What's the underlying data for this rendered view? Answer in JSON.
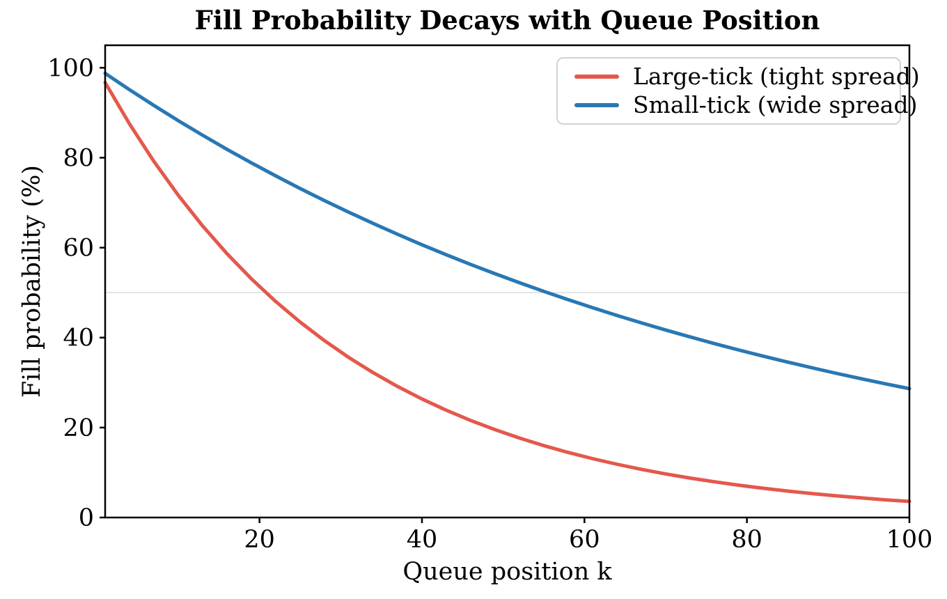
{
  "title": "Fill Probability Decays with Queue Position",
  "x_axis": {
    "label": "Queue position k"
  },
  "y_axis": {
    "label": "Fill probability (%)"
  },
  "legend": {
    "items": [
      {
        "label": "Large-tick (tight spread)"
      },
      {
        "label": "Small-tick (wide spread)"
      }
    ]
  },
  "chart_data": {
    "type": "line",
    "title": "Fill Probability Decays with Queue Position",
    "xlabel": "Queue position k",
    "ylabel": "Fill probability (%)",
    "xlim": [
      1,
      100
    ],
    "ylim": [
      0,
      105
    ],
    "xticks": [
      20,
      40,
      60,
      80,
      100
    ],
    "yticks": [
      0,
      20,
      40,
      60,
      80,
      100
    ],
    "grid": false,
    "reference_line": {
      "y": 50,
      "color": "#dcdcdc"
    },
    "legend_position": "upper right",
    "x": [
      1,
      4,
      7,
      10,
      13,
      16,
      19,
      22,
      25,
      28,
      31,
      34,
      37,
      40,
      43,
      46,
      49,
      52,
      55,
      58,
      61,
      64,
      67,
      70,
      73,
      76,
      79,
      82,
      85,
      88,
      91,
      94,
      97,
      100
    ],
    "series": [
      {
        "name": "Large-tick (tight spread)",
        "color": "#e4584c",
        "values": [
          96.72,
          87.52,
          79.19,
          71.65,
          64.83,
          58.66,
          53.08,
          48.03,
          43.46,
          39.32,
          35.58,
          32.2,
          29.13,
          26.36,
          23.85,
          21.58,
          19.53,
          17.67,
          15.99,
          14.47,
          13.09,
          11.84,
          10.72,
          9.7,
          8.77,
          7.94,
          7.18,
          6.5,
          5.88,
          5.32,
          4.82,
          4.36,
          3.94,
          3.57
        ]
      },
      {
        "name": "Small-tick (wide spread)",
        "color": "#2878b4",
        "values": [
          98.76,
          95.12,
          91.62,
          88.25,
          85.0,
          81.87,
          78.86,
          75.96,
          73.16,
          70.47,
          67.88,
          65.38,
          62.97,
          60.65,
          58.42,
          56.27,
          54.2,
          52.2,
          50.28,
          48.43,
          46.65,
          44.93,
          43.28,
          41.69,
          40.15,
          38.67,
          37.25,
          35.88,
          34.56,
          33.29,
          32.06,
          30.88,
          29.75,
          28.65
        ]
      }
    ]
  }
}
